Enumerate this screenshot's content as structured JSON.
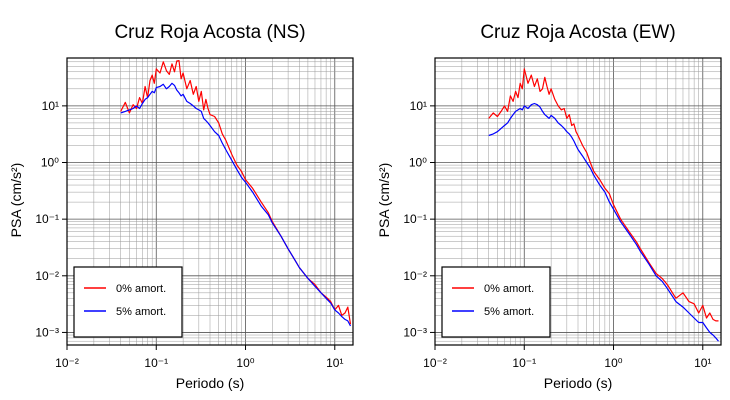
{
  "chart_data": [
    {
      "type": "line",
      "title": "Cruz Roja Acosta (NS)",
      "xlabel": "Periodo (s)",
      "ylabel": "PSA (cm/s²)",
      "xscale": "log",
      "yscale": "log",
      "xlim": [
        0.01,
        16
      ],
      "ylim": [
        0.0006,
        70
      ],
      "grid": true,
      "legend_position": "bottom-left",
      "x_ticks": [
        {
          "value": 0.01,
          "label": "10⁻²"
        },
        {
          "value": 0.1,
          "label": "10⁻¹"
        },
        {
          "value": 1,
          "label": "10⁰"
        },
        {
          "value": 10,
          "label": "10¹"
        }
      ],
      "y_ticks": [
        {
          "value": 0.001,
          "label": "10⁻³"
        },
        {
          "value": 0.01,
          "label": "10⁻²"
        },
        {
          "value": 0.1,
          "label": "10⁻¹"
        },
        {
          "value": 1,
          "label": "10⁰"
        },
        {
          "value": 10,
          "label": "10¹"
        }
      ],
      "series": [
        {
          "name": "0% amort.",
          "color": "#ff0000",
          "x": [
            0.04,
            0.045,
            0.05,
            0.055,
            0.06,
            0.065,
            0.07,
            0.075,
            0.08,
            0.085,
            0.09,
            0.095,
            0.1,
            0.11,
            0.12,
            0.13,
            0.14,
            0.15,
            0.16,
            0.17,
            0.18,
            0.19,
            0.2,
            0.22,
            0.24,
            0.26,
            0.28,
            0.3,
            0.32,
            0.34,
            0.36,
            0.38,
            0.4,
            0.45,
            0.5,
            0.55,
            0.6,
            0.7,
            0.8,
            0.9,
            1.0,
            1.2,
            1.5,
            1.8,
            2.0,
            2.5,
            3.0,
            3.5,
            4.0,
            5.0,
            6.0,
            7.0,
            8.0,
            9.0,
            10.0,
            11.0,
            12.0,
            13.0,
            14.0,
            15.0
          ],
          "y": [
            8.0,
            11.5,
            7.5,
            10.5,
            9.0,
            14.0,
            11.0,
            22.0,
            14.0,
            28.0,
            35.0,
            25.0,
            45.0,
            38.0,
            60.0,
            42.0,
            36.0,
            55.0,
            40.0,
            62.0,
            63.0,
            30.0,
            38.0,
            20.0,
            28.0,
            16.0,
            22.0,
            12.0,
            18.0,
            8.5,
            13.0,
            9.0,
            7.0,
            6.5,
            5.0,
            3.2,
            2.5,
            1.4,
            0.9,
            0.7,
            0.5,
            0.35,
            0.2,
            0.13,
            0.09,
            0.05,
            0.03,
            0.02,
            0.014,
            0.009,
            0.007,
            0.005,
            0.0042,
            0.0035,
            0.0025,
            0.003,
            0.002,
            0.0022,
            0.0028,
            0.0014
          ]
        },
        {
          "name": "5% amort.",
          "color": "#0000ff",
          "x": [
            0.04,
            0.045,
            0.05,
            0.055,
            0.06,
            0.065,
            0.07,
            0.075,
            0.08,
            0.085,
            0.09,
            0.095,
            0.1,
            0.11,
            0.12,
            0.13,
            0.14,
            0.15,
            0.16,
            0.17,
            0.18,
            0.19,
            0.2,
            0.22,
            0.24,
            0.26,
            0.28,
            0.3,
            0.32,
            0.34,
            0.36,
            0.38,
            0.4,
            0.45,
            0.5,
            0.55,
            0.6,
            0.7,
            0.8,
            0.9,
            1.0,
            1.2,
            1.5,
            1.8,
            2.0,
            2.5,
            3.0,
            3.5,
            4.0,
            5.0,
            6.0,
            7.0,
            8.0,
            9.0,
            10.0,
            11.0,
            12.0,
            13.0,
            14.0,
            15.0
          ],
          "y": [
            7.5,
            8.0,
            8.5,
            9.0,
            10.0,
            9.0,
            11.0,
            13.0,
            14.0,
            16.0,
            18.0,
            17.0,
            21.0,
            22.0,
            24.0,
            20.0,
            22.0,
            25.0,
            23.0,
            19.0,
            17.0,
            15.0,
            16.0,
            12.0,
            11.0,
            10.0,
            9.0,
            8.5,
            8.0,
            6.0,
            5.5,
            5.0,
            4.5,
            3.5,
            3.0,
            2.2,
            1.7,
            1.1,
            0.75,
            0.55,
            0.45,
            0.3,
            0.17,
            0.12,
            0.085,
            0.05,
            0.03,
            0.02,
            0.014,
            0.009,
            0.0065,
            0.005,
            0.004,
            0.0033,
            0.0025,
            0.0022,
            0.0019,
            0.0017,
            0.0016,
            0.0013
          ]
        }
      ]
    },
    {
      "type": "line",
      "title": "Cruz Roja Acosta (EW)",
      "xlabel": "Periodo (s)",
      "ylabel": "PSA (cm/s²)",
      "xscale": "log",
      "yscale": "log",
      "xlim": [
        0.01,
        16
      ],
      "ylim": [
        0.0006,
        70
      ],
      "grid": true,
      "legend_position": "bottom-left",
      "x_ticks": [
        {
          "value": 0.01,
          "label": "10⁻²"
        },
        {
          "value": 0.1,
          "label": "10⁻¹"
        },
        {
          "value": 1,
          "label": "10⁰"
        },
        {
          "value": 10,
          "label": "10¹"
        }
      ],
      "y_ticks": [
        {
          "value": 0.001,
          "label": "10⁻³"
        },
        {
          "value": 0.01,
          "label": "10⁻²"
        },
        {
          "value": 0.1,
          "label": "10⁻¹"
        },
        {
          "value": 1,
          "label": "10⁰"
        },
        {
          "value": 10,
          "label": "10¹"
        }
      ],
      "series": [
        {
          "name": "0% amort.",
          "color": "#ff0000",
          "x": [
            0.04,
            0.045,
            0.05,
            0.055,
            0.06,
            0.065,
            0.07,
            0.075,
            0.08,
            0.085,
            0.09,
            0.095,
            0.1,
            0.11,
            0.12,
            0.13,
            0.14,
            0.15,
            0.16,
            0.17,
            0.18,
            0.19,
            0.2,
            0.22,
            0.24,
            0.26,
            0.28,
            0.3,
            0.32,
            0.34,
            0.36,
            0.38,
            0.4,
            0.45,
            0.5,
            0.55,
            0.6,
            0.7,
            0.8,
            0.9,
            1.0,
            1.2,
            1.5,
            1.8,
            2.0,
            2.5,
            3.0,
            3.5,
            4.0,
            5.0,
            6.0,
            7.0,
            8.0,
            9.0,
            10.0,
            11.0,
            12.0,
            13.0,
            14.0,
            15.0
          ],
          "y": [
            6.0,
            7.5,
            6.5,
            8.0,
            10.0,
            8.0,
            15.0,
            12.0,
            18.0,
            14.0,
            25.0,
            20.0,
            45.0,
            25.0,
            35.0,
            22.0,
            30.0,
            18.0,
            20.0,
            32.0,
            22.0,
            16.0,
            20.0,
            13.0,
            10.0,
            8.5,
            9.0,
            6.0,
            7.0,
            4.5,
            4.8,
            3.5,
            3.0,
            2.0,
            1.5,
            1.0,
            0.7,
            0.5,
            0.35,
            0.28,
            0.18,
            0.1,
            0.06,
            0.04,
            0.03,
            0.017,
            0.011,
            0.009,
            0.007,
            0.004,
            0.005,
            0.0035,
            0.0032,
            0.0022,
            0.003,
            0.0018,
            0.0022,
            0.0017,
            0.0016,
            0.0016
          ]
        },
        {
          "name": "5% amort.",
          "color": "#0000ff",
          "x": [
            0.04,
            0.045,
            0.05,
            0.055,
            0.06,
            0.065,
            0.07,
            0.075,
            0.08,
            0.085,
            0.09,
            0.095,
            0.1,
            0.11,
            0.12,
            0.13,
            0.14,
            0.15,
            0.16,
            0.17,
            0.18,
            0.19,
            0.2,
            0.22,
            0.24,
            0.26,
            0.28,
            0.3,
            0.32,
            0.34,
            0.36,
            0.38,
            0.4,
            0.45,
            0.5,
            0.55,
            0.6,
            0.7,
            0.8,
            0.9,
            1.0,
            1.2,
            1.5,
            1.8,
            2.0,
            2.5,
            3.0,
            3.5,
            4.0,
            5.0,
            6.0,
            7.0,
            8.0,
            9.0,
            10.0,
            11.0,
            12.0,
            13.0,
            14.0,
            15.0
          ],
          "y": [
            3.0,
            3.2,
            3.5,
            4.0,
            4.5,
            5.0,
            6.0,
            7.0,
            8.0,
            8.5,
            9.0,
            8.5,
            10.0,
            9.0,
            10.5,
            11.0,
            10.5,
            9.5,
            8.0,
            7.0,
            6.5,
            6.0,
            6.8,
            6.0,
            5.0,
            4.5,
            4.0,
            3.5,
            3.2,
            2.8,
            2.4,
            2.0,
            1.7,
            1.3,
            1.0,
            0.8,
            0.6,
            0.4,
            0.3,
            0.2,
            0.15,
            0.09,
            0.055,
            0.036,
            0.027,
            0.016,
            0.01,
            0.008,
            0.006,
            0.0035,
            0.0028,
            0.0022,
            0.0018,
            0.0015,
            0.0015,
            0.0012,
            0.001,
            0.0009,
            0.0008,
            0.0007
          ]
        }
      ]
    }
  ]
}
